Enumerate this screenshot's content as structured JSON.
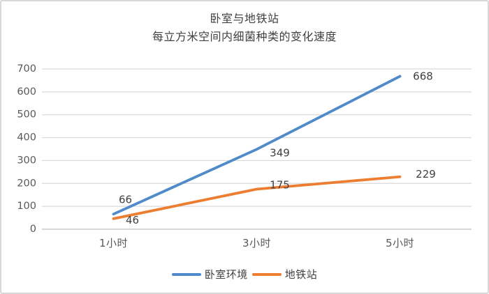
{
  "frame": {
    "background": "#ffffff",
    "border_color": "#d8d8d8"
  },
  "chart_data": {
    "type": "line",
    "title_line1": "卧室与地铁站",
    "title_line2": "每立方米空间内细菌种类的变化速度",
    "categories": [
      "1小时",
      "3小时",
      "5小时"
    ],
    "series": [
      {
        "name": "卧室环境",
        "color": "#4f8aca",
        "values": [
          66,
          349,
          668
        ],
        "label_offsets": [
          [
            17,
            -21
          ],
          [
            33,
            5
          ],
          [
            33,
            0
          ]
        ]
      },
      {
        "name": "地铁站",
        "color": "#ed7d31",
        "values": [
          46,
          175,
          229
        ],
        "label_offsets": [
          [
            27,
            2
          ],
          [
            33,
            -6
          ],
          [
            37,
            -4
          ]
        ]
      }
    ],
    "ylim": [
      0,
      700
    ],
    "yticks": [
      0,
      100,
      200,
      300,
      400,
      500,
      600,
      700
    ],
    "grid": true,
    "legend_position": "bottom",
    "colors": {
      "grid": "#d9d9d9",
      "axis_line": "#bfbfbf",
      "tick_text": "#595959",
      "title_text": "#404040",
      "data_label_text": "#404040",
      "legend_text": "#404040"
    }
  }
}
